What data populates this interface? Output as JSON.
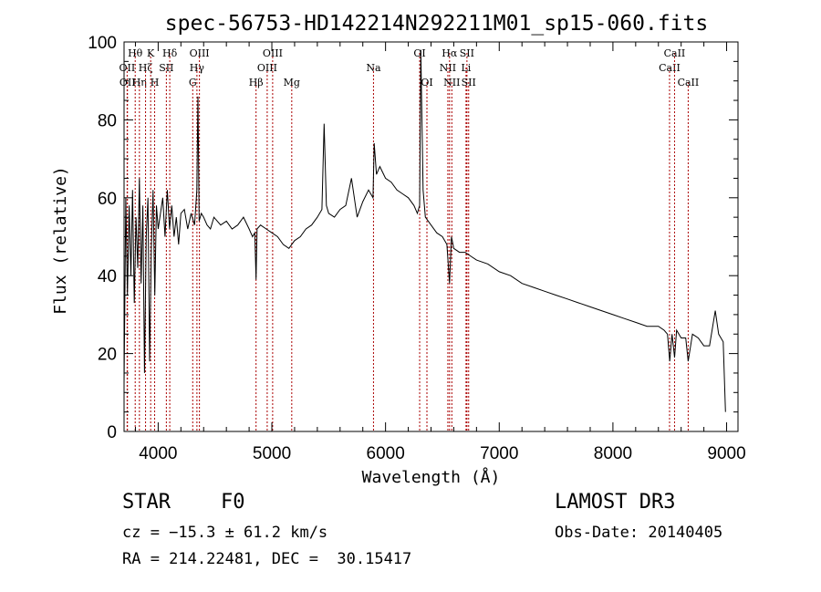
{
  "chart_data": {
    "type": "line",
    "title": "spec-56753-HD142214N292211M01_sp15-060.fits",
    "xlabel": "Wavelength (Å)",
    "ylabel": "Flux (relative)",
    "xlim": [
      3700,
      9100
    ],
    "ylim": [
      0,
      100
    ],
    "xticks": [
      4000,
      5000,
      6000,
      7000,
      8000,
      9000
    ],
    "yticks": [
      0,
      20,
      40,
      60,
      80,
      100
    ],
    "grid": false,
    "line_color": "#000000",
    "marker_color": "#aa0000",
    "series": [
      {
        "x": [
          3700,
          3715,
          3730,
          3745,
          3760,
          3775,
          3790,
          3805,
          3820,
          3835,
          3850,
          3865,
          3880,
          3895,
          3910,
          3925,
          3940,
          3955,
          3970,
          3985,
          4000,
          4020,
          4040,
          4060,
          4080,
          4100,
          4120,
          4140,
          4160,
          4180,
          4200,
          4230,
          4260,
          4290,
          4320,
          4340,
          4350,
          4360,
          4380,
          4400,
          4430,
          4460,
          4490,
          4520,
          4550,
          4600,
          4650,
          4700,
          4750,
          4800,
          4830,
          4850,
          4861,
          4870,
          4900,
          4950,
          5000,
          5050,
          5100,
          5150,
          5200,
          5250,
          5300,
          5350,
          5400,
          5440,
          5460,
          5480,
          5500,
          5550,
          5600,
          5650,
          5700,
          5750,
          5800,
          5850,
          5890,
          5900,
          5920,
          5950,
          6000,
          6050,
          6100,
          6150,
          6200,
          6250,
          6280,
          6300,
          6310,
          6330,
          6350,
          6400,
          6450,
          6500,
          6540,
          6563,
          6580,
          6600,
          6650,
          6700,
          6750,
          6800,
          6900,
          7000,
          7100,
          7200,
          7300,
          7400,
          7500,
          7600,
          7700,
          7800,
          7900,
          8000,
          8100,
          8200,
          8300,
          8400,
          8450,
          8480,
          8500,
          8520,
          8542,
          8560,
          8600,
          8640,
          8662,
          8700,
          8750,
          8800,
          8850,
          8900,
          8930,
          8950,
          8970,
          8990
        ],
        "y": [
          12,
          60,
          35,
          58,
          40,
          62,
          33,
          55,
          42,
          65,
          38,
          58,
          15,
          50,
          60,
          18,
          47,
          62,
          35,
          58,
          52,
          56,
          60,
          50,
          62,
          52,
          58,
          50,
          55,
          48,
          56,
          57,
          52,
          56,
          53,
          62,
          86,
          54,
          56,
          55,
          53,
          52,
          55,
          54,
          53,
          54,
          52,
          53,
          55,
          52,
          50,
          51,
          39,
          52,
          53,
          52,
          51,
          50,
          48,
          47,
          49,
          50,
          52,
          53,
          55,
          57,
          79,
          58,
          56,
          55,
          57,
          58,
          65,
          55,
          59,
          62,
          60,
          74,
          66,
          68,
          65,
          64,
          62,
          61,
          60,
          58,
          56,
          58,
          98,
          62,
          55,
          53,
          51,
          50,
          48,
          38,
          50,
          47,
          46,
          46,
          45,
          44,
          43,
          41,
          40,
          38,
          37,
          36,
          35,
          34,
          33,
          32,
          31,
          30,
          29,
          28,
          27,
          27,
          26,
          25,
          18,
          25,
          19,
          26,
          24,
          24,
          18,
          25,
          24,
          22,
          22,
          31,
          25,
          24,
          23,
          5
        ]
      }
    ],
    "lines": [
      {
        "name": "OII",
        "x": 3727,
        "row": 2
      },
      {
        "name": "OII",
        "x": 3730,
        "row": 3
      },
      {
        "name": "Hθ",
        "x": 3798,
        "row": 1
      },
      {
        "name": "Hη",
        "x": 3835,
        "row": 3
      },
      {
        "name": "Hζ",
        "x": 3889,
        "row": 2
      },
      {
        "name": "K",
        "x": 3934,
        "row": 1
      },
      {
        "name": "H",
        "x": 3969,
        "row": 3
      },
      {
        "name": "SII",
        "x": 4072,
        "row": 2
      },
      {
        "name": "Hδ",
        "x": 4102,
        "row": 1
      },
      {
        "name": "G",
        "x": 4304,
        "row": 3
      },
      {
        "name": "Hγ",
        "x": 4341,
        "row": 2
      },
      {
        "name": "OIII",
        "x": 4363,
        "row": 1
      },
      {
        "name": "Hβ",
        "x": 4861,
        "row": 3
      },
      {
        "name": "OIII",
        "x": 4959,
        "row": 2
      },
      {
        "name": "OIII",
        "x": 5007,
        "row": 1
      },
      {
        "name": "Mg",
        "x": 5175,
        "row": 3
      },
      {
        "name": "Na",
        "x": 5894,
        "row": 2
      },
      {
        "name": "OI",
        "x": 6300,
        "row": 1
      },
      {
        "name": "OI",
        "x": 6364,
        "row": 3
      },
      {
        "name": "NII",
        "x": 6548,
        "row": 2
      },
      {
        "name": "Hα",
        "x": 6563,
        "row": 1
      },
      {
        "name": "NII",
        "x": 6583,
        "row": 3
      },
      {
        "name": "Li",
        "x": 6708,
        "row": 2
      },
      {
        "name": "SII",
        "x": 6716,
        "row": 1
      },
      {
        "name": "SII",
        "x": 6731,
        "row": 3
      },
      {
        "name": "CaII",
        "x": 8498,
        "row": 2
      },
      {
        "name": "CaII",
        "x": 8542,
        "row": 1
      },
      {
        "name": "CaII",
        "x": 8662,
        "row": 3
      }
    ]
  },
  "footer": {
    "object_class": "STAR",
    "subclass": "F0",
    "survey": "LAMOST DR3",
    "redshift": "cz = −15.3 ± 61.2 km/s",
    "obs_date": "Obs-Date: 20140405",
    "coords": "RA = 214.22481, DEC =  30.15417"
  }
}
